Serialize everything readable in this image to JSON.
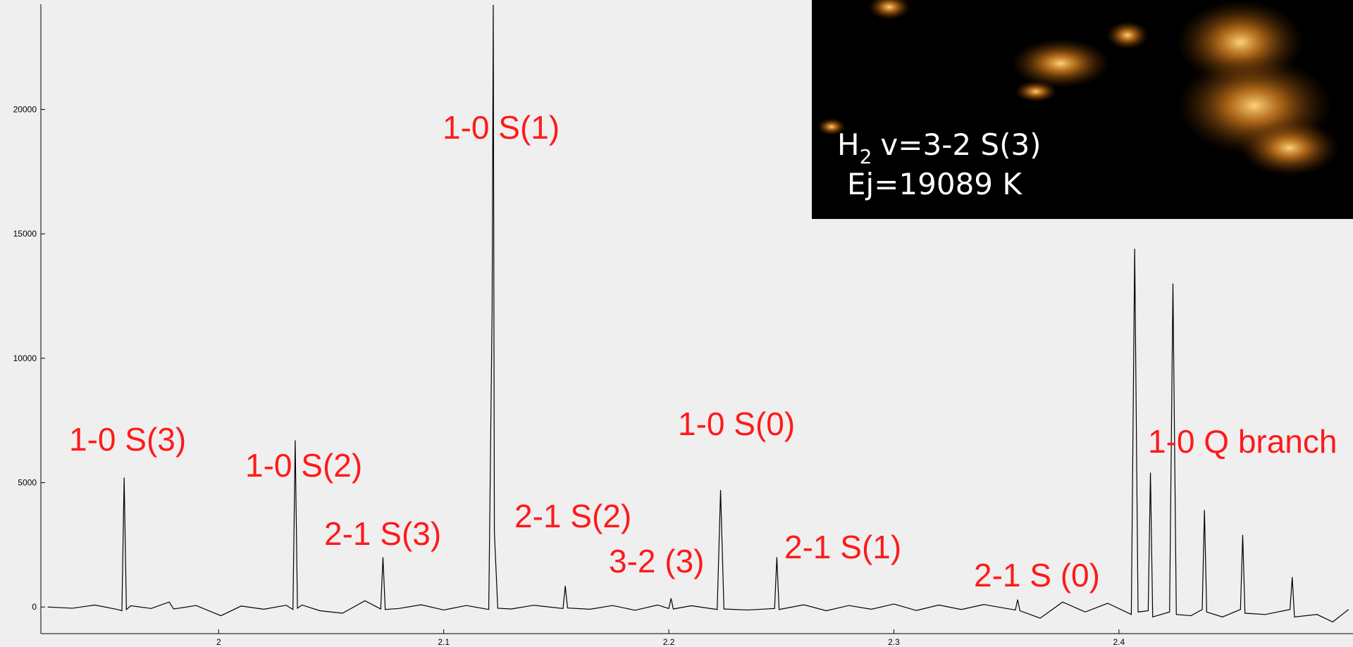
{
  "chart_data": {
    "type": "line",
    "color": "#000000",
    "xlim": [
      1.921,
      2.504
    ],
    "ylim": [
      -1070,
      24230
    ],
    "xticks": [
      2,
      2.1,
      2.2,
      2.3,
      2.4
    ],
    "yticks": [
      0,
      5000,
      10000,
      15000,
      20000
    ],
    "grid": false,
    "x": [
      1.924,
      1.935,
      1.945,
      1.955,
      1.957,
      1.958,
      1.959,
      1.961,
      1.97,
      1.978,
      1.98,
      1.99,
      2.001,
      2.01,
      2.02,
      2.03,
      2.033,
      2.034,
      2.035,
      2.037,
      2.045,
      2.055,
      2.065,
      2.072,
      2.073,
      2.074,
      2.08,
      2.09,
      2.1,
      2.11,
      2.12,
      2.1215,
      2.122,
      2.1225,
      2.124,
      2.13,
      2.14,
      2.153,
      2.154,
      2.155,
      2.165,
      2.175,
      2.185,
      2.195,
      2.2,
      2.201,
      2.202,
      2.21,
      2.2215,
      2.223,
      2.2245,
      2.235,
      2.247,
      2.248,
      2.249,
      2.26,
      2.27,
      2.28,
      2.29,
      2.3,
      2.31,
      2.32,
      2.33,
      2.34,
      2.354,
      2.355,
      2.356,
      2.365,
      2.375,
      2.385,
      2.395,
      2.4055,
      2.407,
      2.4085,
      2.413,
      2.414,
      2.415,
      2.4225,
      2.424,
      2.4255,
      2.432,
      2.437,
      2.438,
      2.439,
      2.446,
      2.454,
      2.455,
      2.456,
      2.465,
      2.476,
      2.477,
      2.478,
      2.488,
      2.495,
      2.502
    ],
    "values": [
      0,
      -50,
      80,
      -100,
      -150,
      5200,
      -100,
      50,
      -60,
      200,
      -80,
      60,
      -350,
      40,
      -90,
      70,
      -100,
      6700,
      -50,
      80,
      -150,
      -250,
      250,
      -80,
      2000,
      -100,
      -60,
      90,
      -120,
      60,
      -100,
      12000,
      24200,
      3000,
      -50,
      -80,
      70,
      -60,
      850,
      -40,
      -90,
      60,
      -130,
      80,
      -60,
      350,
      -80,
      50,
      -100,
      4700,
      -80,
      -120,
      -60,
      2000,
      -100,
      90,
      -150,
      60,
      -90,
      120,
      -140,
      80,
      -100,
      100,
      -120,
      300,
      -150,
      -450,
      200,
      -200,
      150,
      -300,
      14400,
      -200,
      -150,
      5400,
      -400,
      -200,
      13000,
      -300,
      -350,
      -100,
      3900,
      -200,
      -400,
      -100,
      2900,
      -250,
      -300,
      -100,
      1200,
      -400,
      -300,
      -600,
      -100
    ],
    "annotations": [
      "1-0 S(3)",
      "1-0 S(2)",
      "2-1 S(3)",
      "1-0 S(1)",
      "2-1 S(2)",
      "3-2 (3)",
      "1-0 S(0)",
      "2-1 S(1)",
      "2-1 S (0)",
      "1-0 Q branch"
    ],
    "annotation_color": "#ff1a1a",
    "inset": {
      "species": "H",
      "subscript": "2",
      "transition": "v=3-2 S(3)",
      "energy": "Ej=19089 K"
    }
  }
}
